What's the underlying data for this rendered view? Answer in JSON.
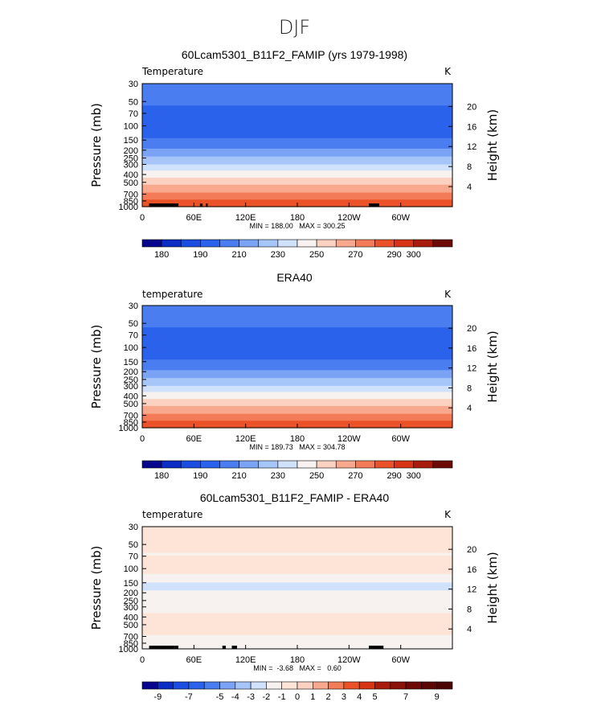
{
  "page_title": "DJF",
  "chart_data": [
    {
      "type": "heatmap",
      "title": "60Lcam5301_B11F2_FAMIP (yrs 1979-1998)",
      "variable": "Temperature",
      "units": "K",
      "xlabel": "",
      "ylabel": "Pressure (mb)",
      "ylabel_right": "Height (km)",
      "x_ticks": [
        "0",
        "60E",
        "120E",
        "180",
        "120W",
        "60W"
      ],
      "x_tick_values": [
        0,
        60,
        120,
        180,
        240,
        300
      ],
      "xlim": [
        0,
        360
      ],
      "y_ticks": [
        "30",
        "50",
        "70",
        "100",
        "150",
        "200",
        "250",
        "300",
        "400",
        "500",
        "700",
        "850",
        "1000"
      ],
      "y_tick_values": [
        30,
        50,
        70,
        100,
        150,
        200,
        250,
        300,
        400,
        500,
        700,
        850,
        1000
      ],
      "y_scale": "log",
      "y_reversed": true,
      "ylim": [
        1000,
        30
      ],
      "right_ticks": [
        "4",
        "8",
        "12",
        "16",
        "20"
      ],
      "right_tick_values": [
        4,
        8,
        12,
        16,
        20
      ],
      "stats": "MIN = 188.00   MAX = 300.25",
      "min": 188.0,
      "max": 300.25,
      "levels": [
        175,
        180,
        185,
        190,
        200,
        210,
        220,
        230,
        240,
        250,
        260,
        270,
        280,
        290,
        300,
        305
      ],
      "colorbar_labels": [
        "180",
        "190",
        "210",
        "230",
        "250",
        "270",
        "290",
        "300"
      ],
      "colorbar_label_positions": [
        0,
        2,
        4,
        6,
        8,
        10,
        12,
        13
      ],
      "colors": [
        "#08068c",
        "#0a2ec4",
        "#1a4de0",
        "#2a62eb",
        "#4a7ef0",
        "#7aa3f5",
        "#a6c6f9",
        "#cfe1fb",
        "#f7f2ef",
        "#fbd2c2",
        "#f8a98d",
        "#f47b57",
        "#ec5228",
        "#d63414",
        "#a81c0c",
        "#6e0a06"
      ],
      "profile": [
        [
          30,
          207
        ],
        [
          50,
          203
        ],
        [
          60,
          197
        ],
        [
          70,
          193
        ],
        [
          80,
          192
        ],
        [
          100,
          192
        ],
        [
          130,
          197
        ],
        [
          150,
          202
        ],
        [
          180,
          208
        ],
        [
          210,
          214
        ],
        [
          250,
          222
        ],
        [
          300,
          231
        ],
        [
          350,
          239
        ],
        [
          400,
          246
        ],
        [
          450,
          252
        ],
        [
          500,
          257
        ],
        [
          600,
          266
        ],
        [
          700,
          273
        ],
        [
          850,
          282
        ],
        [
          1000,
          289
        ]
      ],
      "terrain": [
        [
          8,
          34
        ],
        [
          34,
          38
        ],
        [
          38,
          42
        ],
        [
          67,
          70
        ],
        [
          74,
          76
        ],
        [
          263,
          275
        ]
      ]
    },
    {
      "type": "heatmap",
      "title": "ERA40",
      "variable": "temperature",
      "units": "K",
      "xlabel": "",
      "ylabel": "Pressure (mb)",
      "ylabel_right": "Height (km)",
      "x_ticks": [
        "0",
        "60E",
        "120E",
        "180",
        "120W",
        "60W"
      ],
      "x_tick_values": [
        0,
        60,
        120,
        180,
        240,
        300
      ],
      "xlim": [
        0,
        360
      ],
      "y_ticks": [
        "30",
        "50",
        "70",
        "100",
        "150",
        "200",
        "250",
        "300",
        "400",
        "500",
        "700",
        "850",
        "1000"
      ],
      "y_tick_values": [
        30,
        50,
        70,
        100,
        150,
        200,
        250,
        300,
        400,
        500,
        700,
        850,
        1000
      ],
      "y_scale": "log",
      "y_reversed": true,
      "ylim": [
        1000,
        30
      ],
      "right_ticks": [
        "4",
        "8",
        "12",
        "16",
        "20"
      ],
      "right_tick_values": [
        4,
        8,
        12,
        16,
        20
      ],
      "stats": "MIN = 189.73   MAX = 304.78",
      "min": 189.73,
      "max": 304.78,
      "levels": [
        175,
        180,
        185,
        190,
        200,
        210,
        220,
        230,
        240,
        250,
        260,
        270,
        280,
        290,
        300,
        305
      ],
      "colorbar_labels": [
        "180",
        "190",
        "210",
        "230",
        "250",
        "270",
        "290",
        "300"
      ],
      "colorbar_label_positions": [
        0,
        2,
        4,
        6,
        8,
        10,
        12,
        13
      ],
      "colors": [
        "#08068c",
        "#0a2ec4",
        "#1a4de0",
        "#2a62eb",
        "#4a7ef0",
        "#7aa3f5",
        "#a6c6f9",
        "#cfe1fb",
        "#f7f2ef",
        "#fbd2c2",
        "#f8a98d",
        "#f47b57",
        "#ec5228",
        "#d63414",
        "#a81c0c",
        "#6e0a06"
      ],
      "profile": [
        [
          30,
          207
        ],
        [
          50,
          203
        ],
        [
          60,
          197
        ],
        [
          70,
          193
        ],
        [
          80,
          192
        ],
        [
          100,
          192
        ],
        [
          130,
          197
        ],
        [
          150,
          202
        ],
        [
          180,
          208
        ],
        [
          210,
          214
        ],
        [
          250,
          222
        ],
        [
          300,
          231
        ],
        [
          350,
          239
        ],
        [
          400,
          246
        ],
        [
          450,
          252
        ],
        [
          500,
          257
        ],
        [
          600,
          266
        ],
        [
          700,
          273
        ],
        [
          850,
          283
        ],
        [
          1000,
          291
        ]
      ],
      "terrain": []
    },
    {
      "type": "heatmap",
      "title": "60Lcam5301_B11F2_FAMIP - ERA40",
      "variable": "temperature",
      "units": "K",
      "xlabel": "",
      "ylabel": "Pressure (mb)",
      "ylabel_right": "Height (km)",
      "x_ticks": [
        "0",
        "60E",
        "120E",
        "180",
        "120W",
        "60W"
      ],
      "x_tick_values": [
        0,
        60,
        120,
        180,
        240,
        300
      ],
      "xlim": [
        0,
        360
      ],
      "y_ticks": [
        "30",
        "50",
        "70",
        "100",
        "150",
        "200",
        "250",
        "300",
        "400",
        "500",
        "700",
        "850",
        "1000"
      ],
      "y_tick_values": [
        30,
        50,
        70,
        100,
        150,
        200,
        250,
        300,
        400,
        500,
        700,
        850,
        1000
      ],
      "y_scale": "log",
      "y_reversed": true,
      "ylim": [
        1000,
        30
      ],
      "right_ticks": [
        "4",
        "8",
        "12",
        "16",
        "20"
      ],
      "right_tick_values": [
        4,
        8,
        12,
        16,
        20
      ],
      "stats": "MIN =  -3.68   MAX =   0.60",
      "min": -3.68,
      "max": 0.6,
      "levels": [
        -11,
        -9,
        -8,
        -7,
        -6,
        -5,
        -4,
        -3,
        -2,
        -1,
        0,
        1,
        2,
        3,
        4,
        5,
        6,
        7,
        8,
        9,
        11
      ],
      "colorbar_labels": [
        "-9",
        "-7",
        "-5",
        "-4",
        "-3",
        "-2",
        "-1",
        "0",
        "1",
        "2",
        "3",
        "4",
        "5",
        "7",
        "9"
      ],
      "colorbar_label_positions": [
        0,
        2,
        4,
        5,
        6,
        7,
        8,
        9,
        10,
        11,
        12,
        13,
        14,
        16,
        18
      ],
      "colors": [
        "#08068c",
        "#0a2ec4",
        "#1a4de0",
        "#2a62eb",
        "#4a7ef0",
        "#7aa3f5",
        "#a6c6f9",
        "#cfe1fb",
        "#f7f2ef",
        "#fde4d6",
        "#fbd2c2",
        "#f8a98d",
        "#f47b57",
        "#ec5228",
        "#d63414",
        "#a81c0c",
        "#8a1208",
        "#6e0a06",
        "#5a0604",
        "#4a0403"
      ],
      "profile": [
        [
          30,
          -0.7
        ],
        [
          40,
          -0.6
        ],
        [
          55,
          -0.75
        ],
        [
          65,
          -1.05
        ],
        [
          75,
          -0.9
        ],
        [
          90,
          -0.75
        ],
        [
          110,
          -0.8
        ],
        [
          135,
          -1.6
        ],
        [
          160,
          -2.3
        ],
        [
          185,
          -2.0
        ],
        [
          215,
          -1.4
        ],
        [
          260,
          -1.1
        ],
        [
          300,
          -1.05
        ],
        [
          350,
          -1.0
        ],
        [
          420,
          -0.9
        ],
        [
          500,
          -0.8
        ],
        [
          600,
          -0.85
        ],
        [
          700,
          -1.1
        ],
        [
          850,
          -1.2
        ],
        [
          1000,
          -1.1
        ]
      ],
      "terrain": [
        [
          8,
          28
        ],
        [
          28,
          38
        ],
        [
          38,
          42
        ],
        [
          93,
          97
        ],
        [
          104,
          110
        ],
        [
          263,
          280
        ]
      ]
    }
  ]
}
